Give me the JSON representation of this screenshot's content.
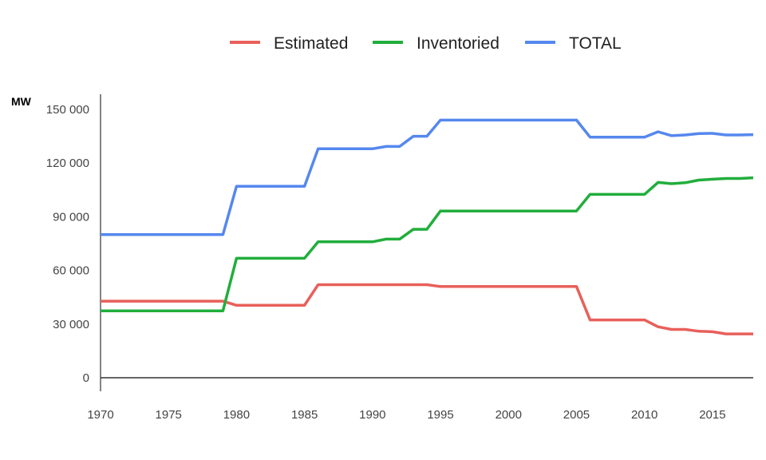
{
  "chart_data": {
    "type": "line",
    "title": "",
    "ylabel": "MW",
    "xlabel": "",
    "xlim": [
      1970,
      2018
    ],
    "ylim": [
      0,
      150000
    ],
    "grid": false,
    "legend_position": "top",
    "x_ticks": [
      1970,
      1975,
      1980,
      1985,
      1990,
      1995,
      2000,
      2005,
      2010,
      2015
    ],
    "y_ticks": [
      0,
      30000,
      60000,
      90000,
      120000,
      150000
    ],
    "y_tick_labels": [
      "0",
      "30 000",
      "60 000",
      "90 000",
      "120 000",
      "150 000"
    ],
    "x": [
      1970,
      1971,
      1972,
      1973,
      1974,
      1975,
      1976,
      1977,
      1978,
      1979,
      1980,
      1981,
      1982,
      1983,
      1984,
      1985,
      1986,
      1987,
      1988,
      1989,
      1990,
      1991,
      1992,
      1993,
      1994,
      1995,
      1996,
      1997,
      1998,
      1999,
      2000,
      2001,
      2002,
      2003,
      2004,
      2005,
      2006,
      2007,
      2008,
      2009,
      2010,
      2011,
      2012,
      2013,
      2014,
      2015,
      2016,
      2017,
      2018
    ],
    "series": [
      {
        "name": "Estimated",
        "color": "#e8605a",
        "values": [
          42800,
          42800,
          42800,
          42800,
          42800,
          42800,
          42800,
          42800,
          42800,
          42800,
          40500,
          40500,
          40500,
          40500,
          40500,
          40500,
          52000,
          52000,
          52000,
          52000,
          52000,
          52000,
          52000,
          52000,
          52000,
          51000,
          51000,
          51000,
          51000,
          51000,
          51000,
          51000,
          51000,
          51000,
          51000,
          51000,
          32300,
          32300,
          32300,
          32300,
          32300,
          28500,
          27000,
          27000,
          26000,
          25700,
          24500,
          24500,
          24500
        ]
      },
      {
        "name": "Inventoried",
        "color": "#21ae3c",
        "values": [
          37400,
          37400,
          37400,
          37400,
          37400,
          37400,
          37400,
          37400,
          37400,
          37400,
          66800,
          66800,
          66800,
          66800,
          66800,
          66800,
          76000,
          76000,
          76000,
          76000,
          76000,
          77500,
          77500,
          83000,
          83000,
          93200,
          93200,
          93200,
          93200,
          93200,
          93200,
          93200,
          93200,
          93200,
          93200,
          93200,
          102500,
          102500,
          102500,
          102500,
          102500,
          109200,
          108500,
          109000,
          110500,
          111000,
          111400,
          111400,
          111800
        ]
      },
      {
        "name": "TOTAL",
        "color": "#5588ee",
        "values": [
          80000,
          80000,
          80000,
          80000,
          80000,
          80000,
          80000,
          80000,
          80000,
          80000,
          107000,
          107000,
          107000,
          107000,
          107000,
          107000,
          128000,
          128000,
          128000,
          128000,
          128000,
          129300,
          129300,
          135000,
          135000,
          144000,
          144000,
          144000,
          144000,
          144000,
          144000,
          144000,
          144000,
          144000,
          144000,
          144000,
          134500,
          134500,
          134500,
          134500,
          134500,
          137500,
          135300,
          135700,
          136500,
          136600,
          135700,
          135700,
          135900
        ]
      }
    ]
  }
}
